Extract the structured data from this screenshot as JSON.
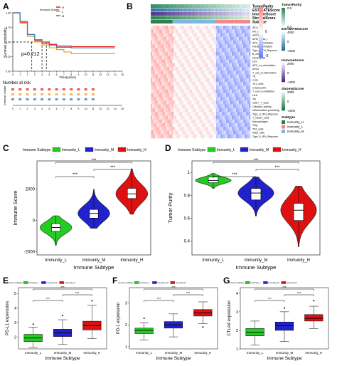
{
  "panels": {
    "A": {
      "letter": "A",
      "legend_title": "Immune cluster",
      "legend_items": [
        "H",
        "L",
        "M"
      ],
      "colors": {
        "H": "#e41a1c",
        "L": "#f0a020",
        "M": "#377eb8"
      },
      "ylabel": "Survival probability",
      "xlabel": "Time(years)",
      "pvalue": "p=0.212",
      "risk_title": "Number at risk",
      "risk_ylabel": "Immune cluster",
      "x_ticks": [
        "0",
        "1",
        "2",
        "3",
        "4",
        "5",
        "6",
        "7",
        "8",
        "9",
        "10",
        "11",
        "12",
        "13",
        "14",
        "15"
      ],
      "y_ticks": [
        "0.00",
        "0.25",
        "0.50",
        "0.75",
        "1.00"
      ]
    },
    "B": {
      "letter": "B",
      "annotation_rows": [
        "TumorPurity",
        "ESTIMATEScore",
        "ImmuneScore",
        "StromalScore",
        "Subtype"
      ],
      "row_labels": [
        "iDCs",
        "NK_cells",
        "aDCs",
        "MHC_class_I",
        "APC_co_inhibition",
        "Parainflammation",
        "Type_I_IFN_Reponse",
        "B_cells",
        "Neutrophils",
        "DCs",
        "APC_co_stimulation",
        "pDCs",
        "T_cell_co-stimulation",
        "TIL",
        "CCR",
        "Th1_cells",
        "Check-point",
        "T_cell_co-inhibition",
        "HLA",
        "Tfh",
        "CD8+_T_cells",
        "Cytolytic_activity",
        "Inflammation-promoting",
        "Type_II_IFN_Reponse",
        "T_helper_cells",
        "Macrophages",
        "Treg",
        "Th2_cells",
        "Mast_cells",
        "Type_II_IFN_Reponse"
      ],
      "colorbar_ticks": [
        "5",
        "0",
        "-5"
      ],
      "legends": [
        {
          "title": "TumorPurity",
          "ticks": [
            "0.9",
            "0.3"
          ]
        },
        {
          "title": "ESTIMATEScore",
          "ticks": [
            "4000",
            "0",
            "-2000"
          ]
        },
        {
          "title": "ImmuneScore",
          "ticks": [
            "2000",
            "0",
            "-1000"
          ]
        },
        {
          "title": "StromalScore",
          "ticks": [
            "2000",
            "0",
            "-2000"
          ]
        }
      ],
      "subtype_legend": {
        "title": "Subtype",
        "items": [
          "Immunity_H",
          "Immunity_L",
          "Immunity_M"
        ]
      }
    },
    "C": {
      "letter": "C",
      "legend_title": "Immune Subtype",
      "ylabel": "Immune Score",
      "xlabel": "Immune Subtype",
      "sig": [
        "***",
        "***",
        "***"
      ]
    },
    "D": {
      "letter": "D",
      "legend_title": "Immune Subtype",
      "ylabel": "Tumor Purity",
      "xlabel": "Immune Subtype",
      "sig": [
        "***",
        "***",
        "***"
      ]
    },
    "E": {
      "letter": "E",
      "legend_title": "Immune Subtype",
      "ylabel": "PD-L1 expression",
      "xlabel": "Immune Subtype",
      "sig": [
        "***",
        "***",
        "***"
      ]
    },
    "F": {
      "letter": "F",
      "legend_title": "Immune Subtype",
      "ylabel": "PD-1 expression",
      "xlabel": "Immune Subtype",
      "sig": [
        "***",
        "***",
        "***"
      ]
    },
    "G": {
      "letter": "G",
      "legend_title": "Immune Subtype",
      "ylabel": "CTLA4 expression",
      "xlabel": "Immune Subtype",
      "sig": [
        "***",
        "***",
        "***"
      ]
    }
  },
  "subtype_colors": {
    "Immunity_L": "#22cc22",
    "Immunity_M": "#2222cc",
    "Immunity_H": "#dd1111"
  },
  "chart_data": [
    {
      "type": "line",
      "panel": "A",
      "ylabel": "Survival probability",
      "xlabel": "Time(years)",
      "xlim": [
        0,
        15
      ],
      "ylim": [
        0,
        1
      ],
      "series": [
        {
          "name": "H",
          "x": [
            0,
            1,
            2,
            3,
            4,
            5,
            6,
            8,
            10,
            12,
            14
          ],
          "y": [
            1.0,
            0.84,
            0.6,
            0.52,
            0.5,
            0.46,
            0.43,
            0.42,
            0.42,
            0.42,
            0.42
          ]
        },
        {
          "name": "L",
          "x": [
            0,
            1,
            2,
            3,
            4,
            5,
            6,
            7,
            8,
            9,
            10,
            12,
            14
          ],
          "y": [
            1.0,
            0.82,
            0.6,
            0.5,
            0.45,
            0.4,
            0.37,
            0.33,
            0.3,
            0.3,
            0.3,
            0.3,
            0.3
          ]
        },
        {
          "name": "M",
          "x": [
            0,
            1,
            2,
            3,
            4,
            5,
            6,
            8,
            10,
            12,
            14
          ],
          "y": [
            1.0,
            0.85,
            0.63,
            0.54,
            0.47,
            0.44,
            0.41,
            0.4,
            0.4,
            0.4,
            0.4
          ]
        }
      ],
      "annotation": "p=0.212"
    },
    {
      "type": "heatmap",
      "panel": "B",
      "colorbar_range": [
        -5,
        5
      ],
      "groups": [
        "Immunity_H",
        "Immunity_M",
        "Immunity_L"
      ],
      "group_fractions": [
        0.22,
        0.43,
        0.35
      ]
    },
    {
      "type": "violin",
      "panel": "C",
      "categories": [
        "Immunity_L",
        "Immunity_M",
        "Immunity_H"
      ],
      "ylim": [
        -2200,
        3800
      ],
      "y_ticks": [
        -2000,
        0,
        2000
      ],
      "medians": [
        -450,
        450,
        1700
      ],
      "q1": [
        -700,
        150,
        1400
      ],
      "q3": [
        -200,
        700,
        2050
      ],
      "ranges": [
        [
          -1600,
          300
        ],
        [
          -500,
          2000
        ],
        [
          400,
          3300
        ]
      ],
      "ylabel": "Immune Score",
      "xlabel": "Immune Subtype"
    },
    {
      "type": "violin",
      "panel": "D",
      "categories": [
        "Immunity_L",
        "Immunity_M",
        "Immunity_H"
      ],
      "ylim": [
        0.28,
        1.1
      ],
      "y_ticks": [
        0.4,
        0.6,
        0.8,
        1.0
      ],
      "medians": [
        0.93,
        0.82,
        0.67
      ],
      "q1": [
        0.91,
        0.76,
        0.58
      ],
      "q3": [
        0.96,
        0.86,
        0.73
      ],
      "ranges": [
        [
          0.86,
          0.99
        ],
        [
          0.62,
          0.96
        ],
        [
          0.35,
          0.88
        ]
      ],
      "ylabel": "Tumor Purity",
      "xlabel": "Immune Subtype"
    },
    {
      "type": "box",
      "panel": "E",
      "categories": [
        "Immunity_L",
        "Immunity_M",
        "Immunity_H"
      ],
      "ylim": [
        1.2,
        5.4
      ],
      "y_ticks": [
        2,
        3,
        4,
        5
      ],
      "medians": [
        1.95,
        2.3,
        2.8
      ],
      "q1": [
        1.7,
        2.05,
        2.5
      ],
      "q3": [
        2.2,
        2.55,
        3.1
      ],
      "whiskers": [
        [
          1.3,
          2.7
        ],
        [
          1.5,
          3.2
        ],
        [
          1.9,
          4.2
        ]
      ],
      "outliers": [
        [
          2.9
        ],
        [
          3.5
        ],
        [
          4.5
        ]
      ],
      "ylabel": "PD-L1 expression",
      "xlabel": "Immune Subtype"
    },
    {
      "type": "box",
      "panel": "F",
      "categories": [
        "Immunity_L",
        "Immunity_M",
        "Immunity_H"
      ],
      "ylim": [
        0.9,
        3.7
      ],
      "y_ticks": [
        1,
        2,
        3
      ],
      "medians": [
        1.75,
        2.0,
        2.55
      ],
      "q1": [
        1.6,
        1.85,
        2.4
      ],
      "q3": [
        1.85,
        2.15,
        2.7
      ],
      "whiskers": [
        [
          1.3,
          2.1
        ],
        [
          1.45,
          2.5
        ],
        [
          2.05,
          3.05
        ]
      ],
      "outliers": [
        [
          2.3
        ],
        [],
        [
          1.9
        ]
      ],
      "ylabel": "PD-1 expression",
      "xlabel": "Immune Subtype"
    },
    {
      "type": "box",
      "panel": "G",
      "categories": [
        "Immunity_L",
        "Immunity_M",
        "Immunity_H"
      ],
      "ylim": [
        1.0,
        4.3
      ],
      "y_ticks": [
        1,
        2,
        3,
        4
      ],
      "medians": [
        1.9,
        2.25,
        2.65
      ],
      "q1": [
        1.7,
        2.0,
        2.5
      ],
      "q3": [
        2.1,
        2.45,
        2.85
      ],
      "whiskers": [
        [
          1.2,
          2.5
        ],
        [
          1.4,
          3.0
        ],
        [
          2.1,
          3.3
        ]
      ],
      "outliers": [
        [],
        [
          3.2
        ],
        [
          3.6
        ]
      ],
      "ylabel": "CTLA4 expression",
      "xlabel": "Immune Subtype"
    }
  ]
}
